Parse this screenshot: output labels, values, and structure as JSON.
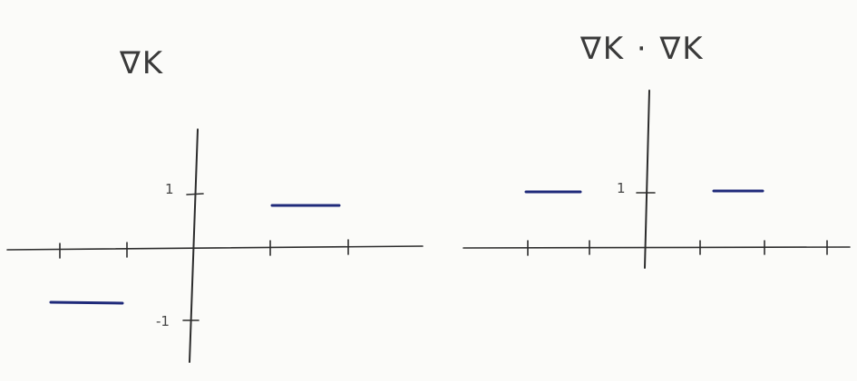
{
  "left_plot": {
    "title": "∇K",
    "y_tick_labels": [
      "1",
      "-1"
    ],
    "segment_values": [
      -1,
      1
    ]
  },
  "right_plot": {
    "title": "∇K · ∇K",
    "y_tick_labels": [
      "1"
    ],
    "segment_values": [
      1,
      1
    ]
  },
  "colors": {
    "ink": "#2c2c2c",
    "segment": "#1f2a7a",
    "paper": "#fbfbf9"
  }
}
